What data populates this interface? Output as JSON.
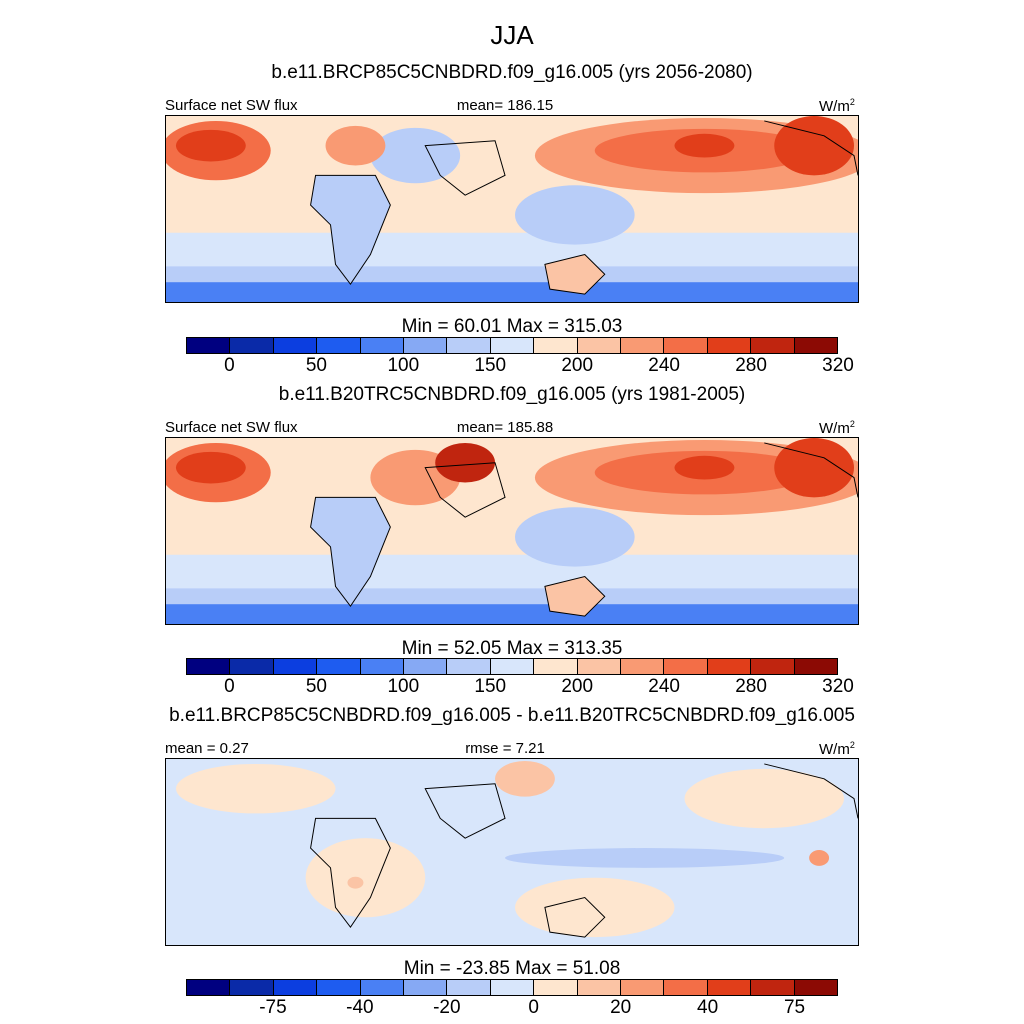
{
  "figure_title": "JJA",
  "colors": {
    "abs_scale": [
      "#000080",
      "#0a2aa8",
      "#0c3ee0",
      "#1e5cf0",
      "#4a80f4",
      "#86a9f4",
      "#b8cdf8",
      "#d8e6fb",
      "#fee6cf",
      "#fbc4a5",
      "#f99a73",
      "#f36e47",
      "#e13e1a",
      "#c0250f",
      "#8c0a04"
    ],
    "diff_scale": [
      "#000080",
      "#0a2aa8",
      "#0c3ee0",
      "#1e5cf0",
      "#4a80f4",
      "#86a9f4",
      "#b8cdf8",
      "#d8e6fb",
      "#fee6cf",
      "#fbc4a5",
      "#f99a73",
      "#f36e47",
      "#e13e1a",
      "#c0250f",
      "#8c0a04"
    ],
    "land_outline": "#000000",
    "ocean_neutral": "#d8e6fb",
    "warm_mid": "#f99a73"
  },
  "panels": [
    {
      "title": "b.e11.BRCP85C5CNBDRD.f09_g16.005 (yrs 2056-2080)",
      "left_label": "Surface net SW flux",
      "center_label": "mean= 186.15",
      "units": "W/m",
      "units_sup": "2",
      "stats": "Min =  60.01 Max = 315.03",
      "ticks": [
        "0",
        "50",
        "100",
        "150",
        "200",
        "240",
        "280",
        "320"
      ]
    },
    {
      "title": "b.e11.B20TRC5CNBDRD.f09_g16.005 (yrs 1981-2005)",
      "left_label": "Surface net SW flux",
      "center_label": "mean= 185.88",
      "units": "W/m",
      "units_sup": "2",
      "stats": "Min =  52.05 Max = 313.35",
      "ticks": [
        "0",
        "50",
        "100",
        "150",
        "200",
        "240",
        "280",
        "320"
      ]
    },
    {
      "title": "b.e11.BRCP85C5CNBDRD.f09_g16.005 - b.e11.B20TRC5CNBDRD.f09_g16.005",
      "left_label": "mean =   0.27",
      "center_label": "rmse =   7.21",
      "units": "W/m",
      "units_sup": "2",
      "stats": "Min = -23.85 Max =  51.08",
      "ticks": [
        "-75",
        "-40",
        "-20",
        "0",
        "20",
        "40",
        "75"
      ]
    }
  ]
}
